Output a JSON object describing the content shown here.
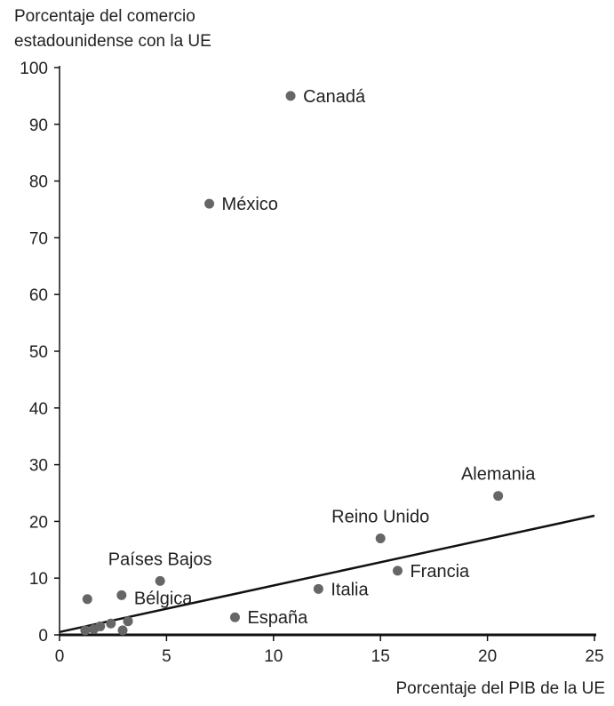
{
  "chart_data": {
    "type": "scatter",
    "title": "",
    "ylabel_lines": [
      "Porcentaje del comercio",
      "estadounidense con la UE"
    ],
    "xlabel": "Porcentaje del PIB de la UE",
    "xlim": [
      0,
      25
    ],
    "ylim": [
      0,
      100
    ],
    "xticks": [
      0,
      5,
      10,
      15,
      20,
      25
    ],
    "yticks": [
      0,
      10,
      20,
      30,
      40,
      50,
      60,
      70,
      80,
      90,
      100
    ],
    "grid": false,
    "point_color": "#666666",
    "line_color": "#111111",
    "points": [
      {
        "x": 10.8,
        "y": 95,
        "label": "Canadá",
        "label_pos": "right"
      },
      {
        "x": 7.0,
        "y": 76,
        "label": "México",
        "label_pos": "right"
      },
      {
        "x": 20.5,
        "y": 24.5,
        "label": "Alemania",
        "label_pos": "above"
      },
      {
        "x": 15.0,
        "y": 17,
        "label": "Reino Unido",
        "label_pos": "above"
      },
      {
        "x": 15.8,
        "y": 11.3,
        "label": "Francia",
        "label_pos": "right"
      },
      {
        "x": 12.1,
        "y": 8.1,
        "label": "Italia",
        "label_pos": "right"
      },
      {
        "x": 8.2,
        "y": 3.1,
        "label": "España",
        "label_pos": "right"
      },
      {
        "x": 4.7,
        "y": 9.5,
        "label": "Países Bajos",
        "label_pos": "above"
      },
      {
        "x": 2.9,
        "y": 7.0,
        "label": "Bélgica",
        "label_pos": "below-right"
      },
      {
        "x": 1.3,
        "y": 6.3,
        "label": "",
        "label_pos": "none"
      },
      {
        "x": 2.4,
        "y": 2.0,
        "label": "",
        "label_pos": "none"
      },
      {
        "x": 3.2,
        "y": 2.4,
        "label": "",
        "label_pos": "none"
      },
      {
        "x": 1.9,
        "y": 1.5,
        "label": "",
        "label_pos": "none"
      },
      {
        "x": 1.6,
        "y": 1.0,
        "label": "",
        "label_pos": "none"
      },
      {
        "x": 1.2,
        "y": 0.8,
        "label": "",
        "label_pos": "none"
      },
      {
        "x": 2.95,
        "y": 0.8,
        "label": "",
        "label_pos": "none"
      }
    ],
    "trendline": {
      "x": [
        0,
        25
      ],
      "y": [
        0.5,
        21
      ]
    }
  }
}
